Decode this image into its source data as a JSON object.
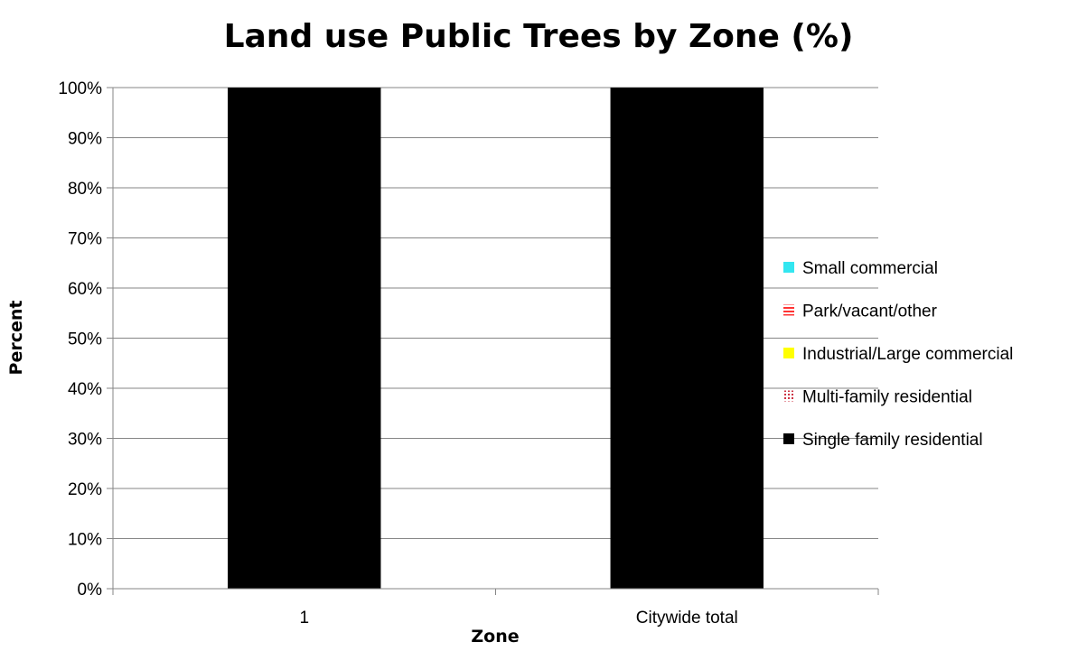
{
  "chart_data": {
    "type": "bar",
    "stacked": true,
    "title": "Land use Public Trees by Zone (%)",
    "xlabel": "Zone",
    "ylabel": "Percent",
    "categories": [
      "1",
      "Citywide total"
    ],
    "series": [
      {
        "name": "Single family residential",
        "values": [
          100,
          100
        ],
        "color": "#000000",
        "pattern": "solid"
      },
      {
        "name": "Multi-family residential",
        "values": [
          0,
          0
        ],
        "color": "#cc3344",
        "pattern": "dots"
      },
      {
        "name": "Industrial/Large commercial",
        "values": [
          0,
          0
        ],
        "color": "#ffff00",
        "pattern": "solid"
      },
      {
        "name": "Park/vacant/other",
        "values": [
          0,
          0
        ],
        "color": "#ff3333",
        "pattern": "stripes"
      },
      {
        "name": "Small commercial",
        "values": [
          0,
          0
        ],
        "color": "#33e6f0",
        "pattern": "solid"
      }
    ],
    "ylim": [
      0,
      100
    ],
    "yticks": [
      "0%",
      "10%",
      "20%",
      "30%",
      "40%",
      "50%",
      "60%",
      "70%",
      "80%",
      "90%",
      "100%"
    ],
    "grid": true,
    "legend_position": "right",
    "legend_order": [
      "Small commercial",
      "Park/vacant/other",
      "Industrial/Large commercial",
      "Multi-family residential",
      "Single family residential"
    ]
  }
}
